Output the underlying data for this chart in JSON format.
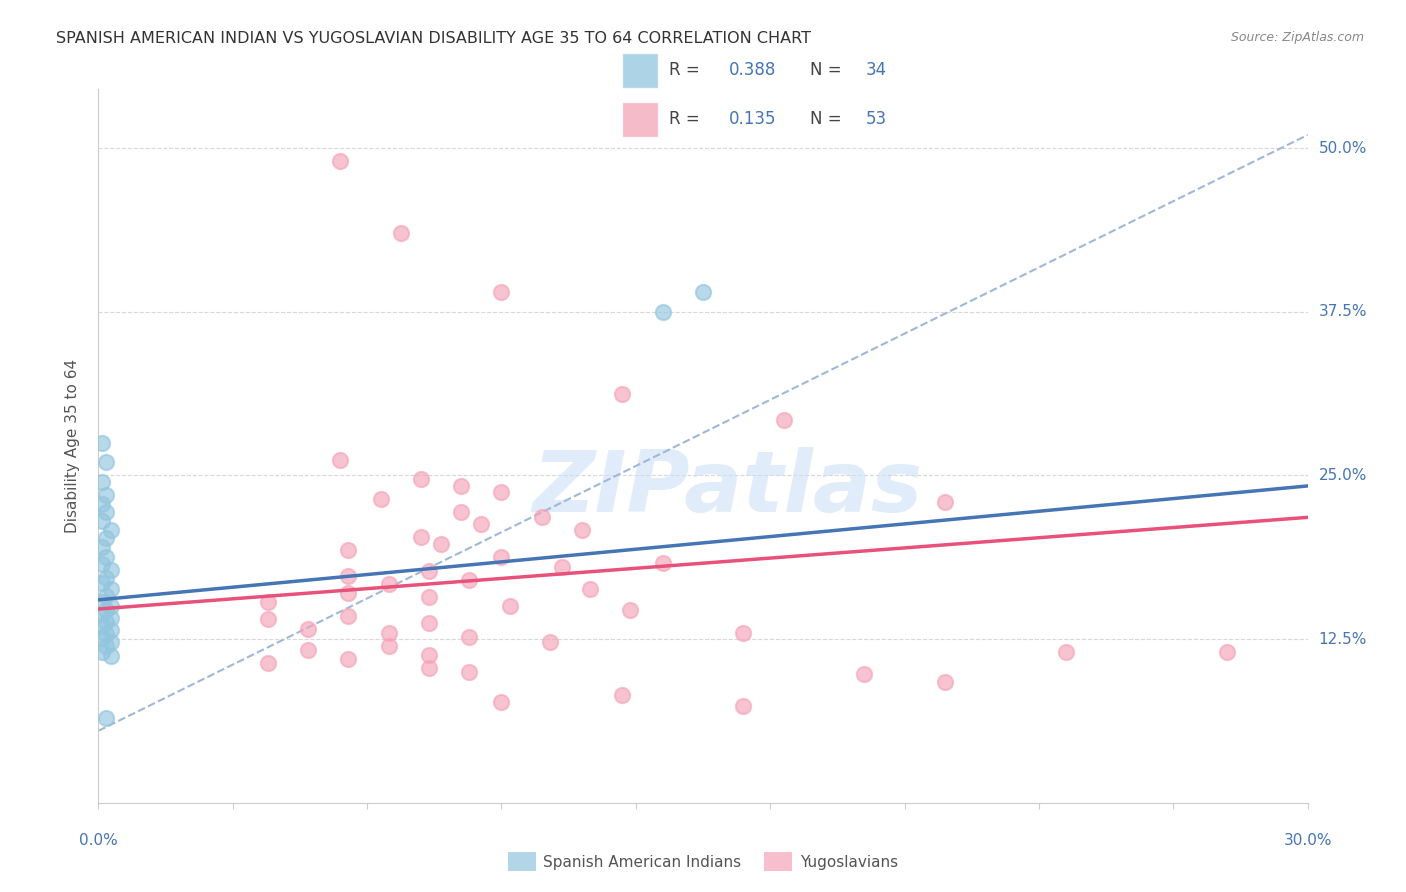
{
  "title": "SPANISH AMERICAN INDIAN VS YUGOSLAVIAN DISABILITY AGE 35 TO 64 CORRELATION CHART",
  "source": "Source: ZipAtlas.com",
  "ylabel": "Disability Age 35 to 64",
  "x_min": 0.0,
  "x_max": 0.3,
  "y_min": 0.0,
  "y_max": 0.545,
  "color_blue": "#92c5de",
  "color_pink": "#f4a4b8",
  "color_blue_line": "#4575b4",
  "color_pink_line": "#e8527a",
  "color_blue_text": "#4575b4",
  "color_dashed": "#a0b8d8",
  "scatter_blue": [
    [
      0.001,
      0.275
    ],
    [
      0.002,
      0.26
    ],
    [
      0.001,
      0.245
    ],
    [
      0.002,
      0.235
    ],
    [
      0.001,
      0.228
    ],
    [
      0.002,
      0.222
    ],
    [
      0.001,
      0.215
    ],
    [
      0.003,
      0.208
    ],
    [
      0.002,
      0.202
    ],
    [
      0.001,
      0.195
    ],
    [
      0.002,
      0.188
    ],
    [
      0.001,
      0.182
    ],
    [
      0.003,
      0.178
    ],
    [
      0.002,
      0.172
    ],
    [
      0.001,
      0.168
    ],
    [
      0.003,
      0.163
    ],
    [
      0.002,
      0.158
    ],
    [
      0.001,
      0.153
    ],
    [
      0.003,
      0.15
    ],
    [
      0.002,
      0.147
    ],
    [
      0.001,
      0.144
    ],
    [
      0.003,
      0.141
    ],
    [
      0.002,
      0.138
    ],
    [
      0.001,
      0.135
    ],
    [
      0.003,
      0.132
    ],
    [
      0.002,
      0.129
    ],
    [
      0.001,
      0.126
    ],
    [
      0.003,
      0.123
    ],
    [
      0.002,
      0.12
    ],
    [
      0.001,
      0.115
    ],
    [
      0.003,
      0.112
    ],
    [
      0.002,
      0.065
    ],
    [
      0.15,
      0.39
    ],
    [
      0.14,
      0.375
    ]
  ],
  "scatter_pink": [
    [
      0.06,
      0.49
    ],
    [
      0.075,
      0.435
    ],
    [
      0.1,
      0.39
    ],
    [
      0.13,
      0.312
    ],
    [
      0.17,
      0.292
    ],
    [
      0.06,
      0.262
    ],
    [
      0.08,
      0.247
    ],
    [
      0.09,
      0.242
    ],
    [
      0.1,
      0.237
    ],
    [
      0.07,
      0.232
    ],
    [
      0.09,
      0.222
    ],
    [
      0.11,
      0.218
    ],
    [
      0.095,
      0.213
    ],
    [
      0.12,
      0.208
    ],
    [
      0.08,
      0.203
    ],
    [
      0.085,
      0.198
    ],
    [
      0.062,
      0.193
    ],
    [
      0.1,
      0.188
    ],
    [
      0.14,
      0.183
    ],
    [
      0.115,
      0.18
    ],
    [
      0.082,
      0.177
    ],
    [
      0.062,
      0.173
    ],
    [
      0.092,
      0.17
    ],
    [
      0.072,
      0.167
    ],
    [
      0.122,
      0.163
    ],
    [
      0.062,
      0.16
    ],
    [
      0.082,
      0.157
    ],
    [
      0.042,
      0.153
    ],
    [
      0.102,
      0.15
    ],
    [
      0.132,
      0.147
    ],
    [
      0.062,
      0.143
    ],
    [
      0.042,
      0.14
    ],
    [
      0.082,
      0.137
    ],
    [
      0.052,
      0.133
    ],
    [
      0.072,
      0.13
    ],
    [
      0.092,
      0.127
    ],
    [
      0.112,
      0.123
    ],
    [
      0.072,
      0.12
    ],
    [
      0.052,
      0.117
    ],
    [
      0.082,
      0.113
    ],
    [
      0.062,
      0.11
    ],
    [
      0.042,
      0.107
    ],
    [
      0.082,
      0.103
    ],
    [
      0.092,
      0.1
    ],
    [
      0.21,
      0.23
    ],
    [
      0.16,
      0.13
    ],
    [
      0.24,
      0.115
    ],
    [
      0.28,
      0.115
    ],
    [
      0.19,
      0.098
    ],
    [
      0.21,
      0.092
    ],
    [
      0.13,
      0.082
    ],
    [
      0.1,
      0.077
    ],
    [
      0.16,
      0.074
    ]
  ],
  "blue_line_x": [
    0.0,
    0.3
  ],
  "blue_line_y": [
    0.155,
    0.242
  ],
  "pink_line_x": [
    0.0,
    0.3
  ],
  "pink_line_y": [
    0.148,
    0.218
  ],
  "dashed_line_x": [
    0.0,
    0.3
  ],
  "dashed_line_y": [
    0.055,
    0.51
  ],
  "background_color": "#ffffff",
  "grid_color": "#d8d8d8",
  "yticks": [
    0.125,
    0.25,
    0.375,
    0.5
  ],
  "ytick_labels": [
    "12.5%",
    "25.0%",
    "37.5%",
    "50.0%"
  ],
  "xtick_labels_show": [
    "0.0%",
    "30.0%"
  ],
  "watermark": "ZIPatlas",
  "legend_r1": "0.388",
  "legend_n1": "34",
  "legend_r2": "0.135",
  "legend_n2": "53",
  "legend_label1": "Spanish American Indians",
  "legend_label2": "Yugoslavians"
}
